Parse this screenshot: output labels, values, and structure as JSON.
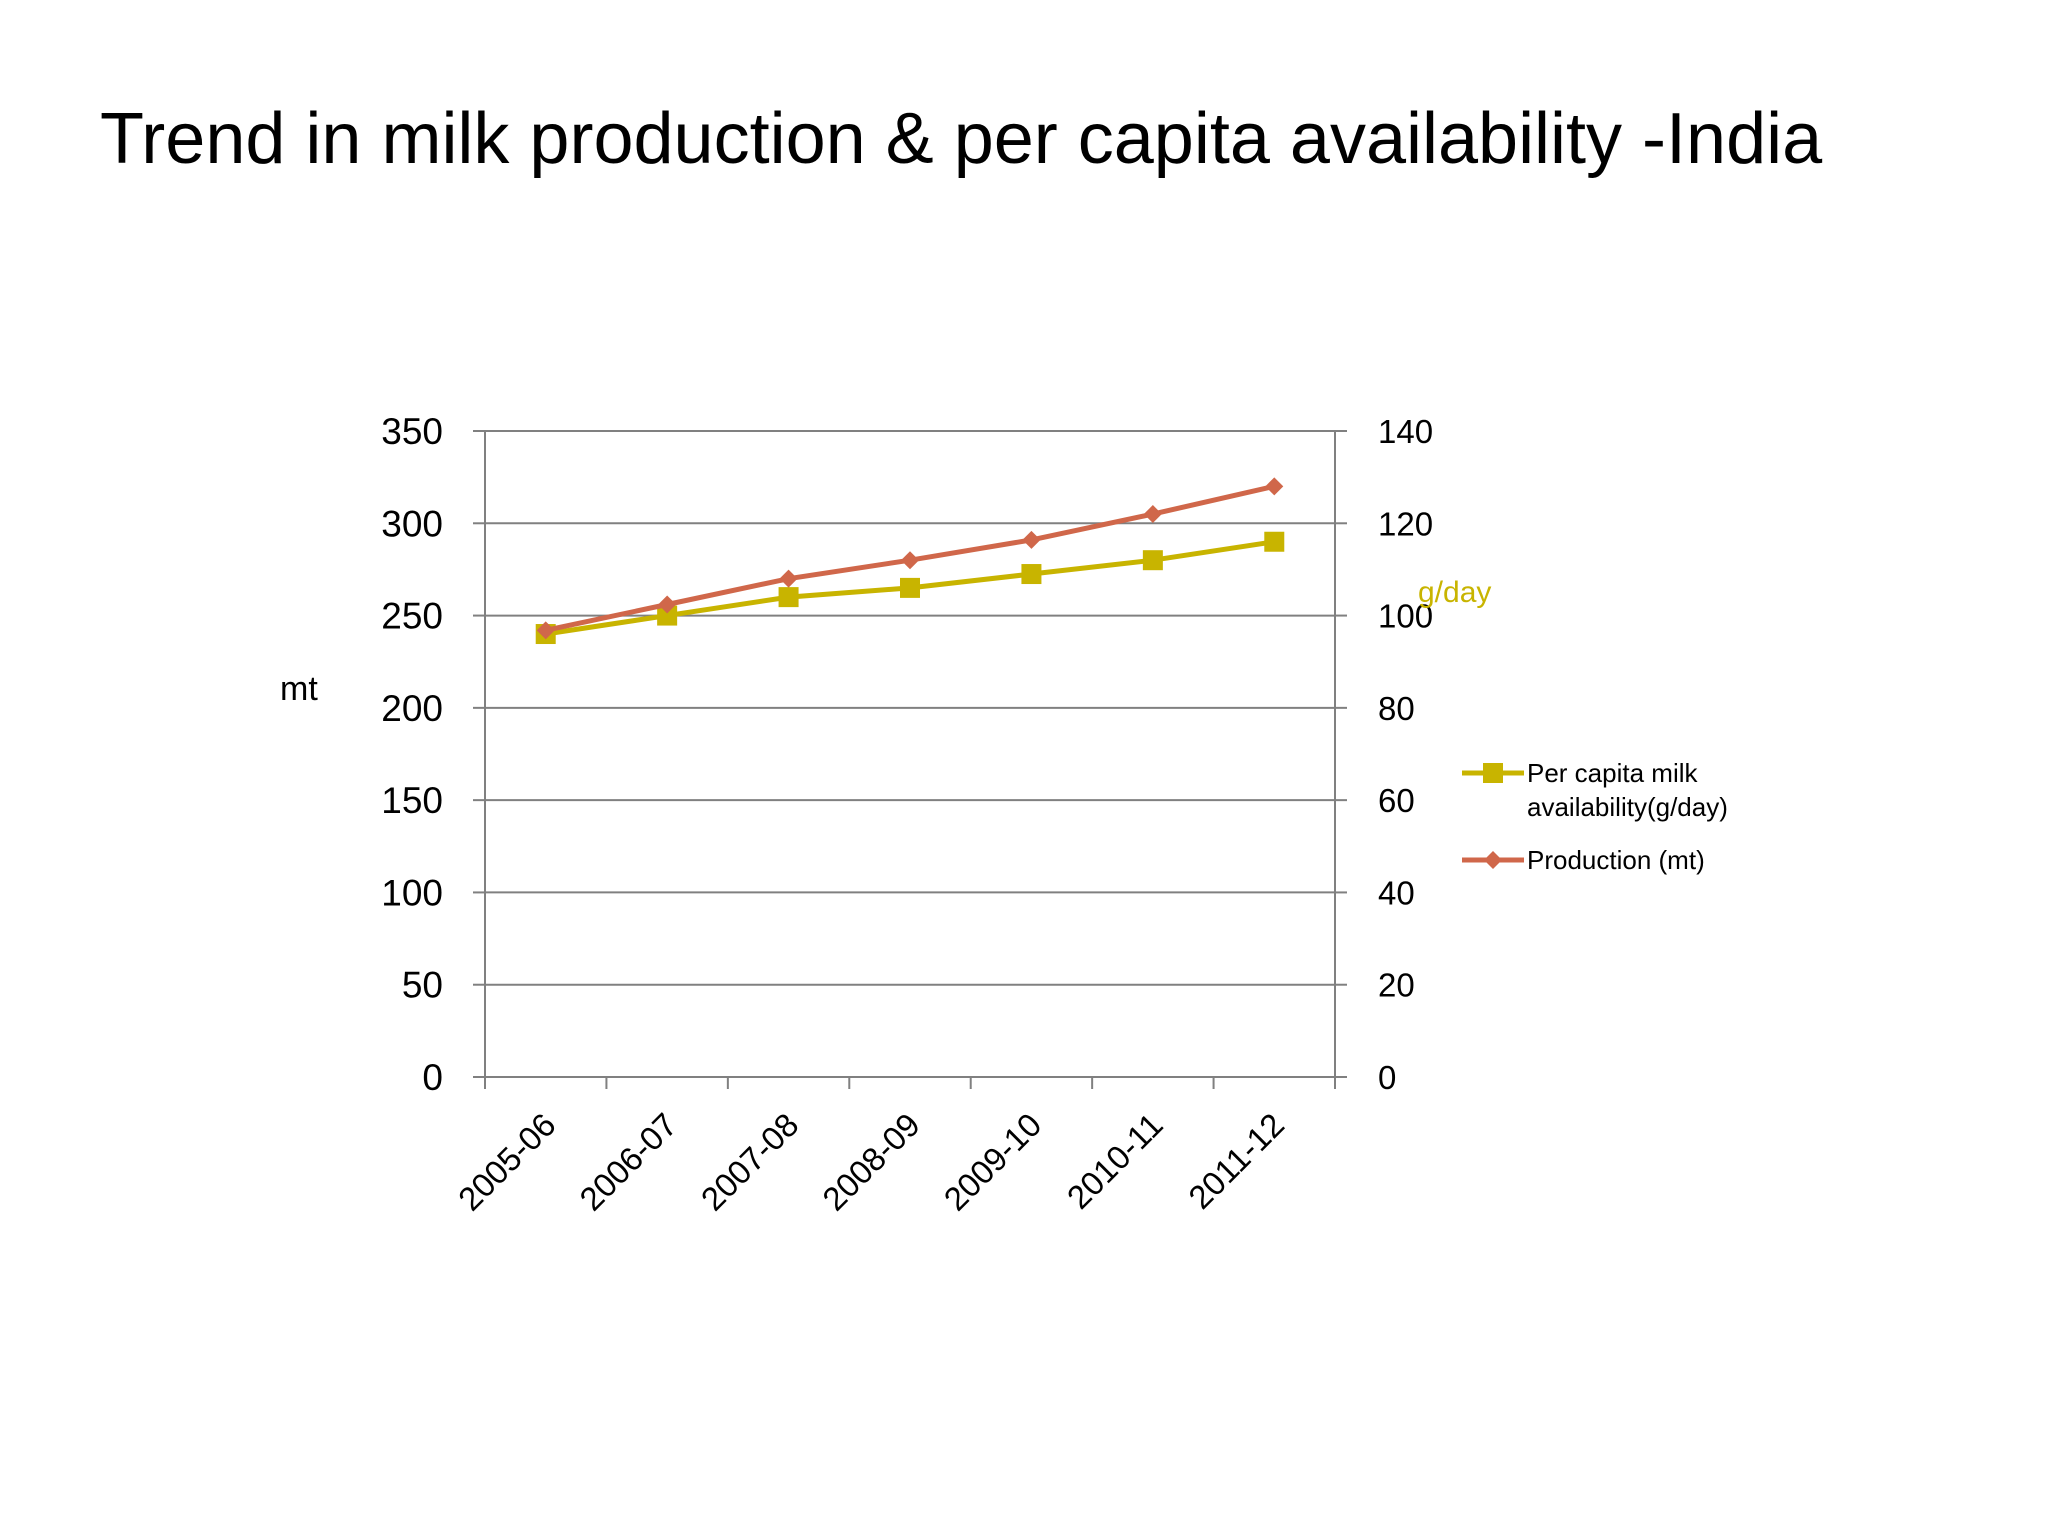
{
  "title": "Trend in milk production & per capita availability -India",
  "colors": {
    "per_capita": "#C8B400",
    "production": "#D0674A",
    "grid": "#808080",
    "text": "#000000"
  },
  "chart_data": {
    "type": "line",
    "title": "",
    "categories": [
      "2005-06",
      "2006-07",
      "2007-08",
      "2008-09",
      "2009-10",
      "2010-11",
      "2011-12"
    ],
    "y_left": {
      "label": "mt",
      "ylim": [
        0,
        350
      ],
      "ticks": [
        "0",
        "50",
        "100",
        "150",
        "200",
        "250",
        "300",
        "350"
      ]
    },
    "y_right": {
      "label": "g/day",
      "ylim": [
        0,
        140
      ],
      "ticks": [
        "0",
        "20",
        "40",
        "60",
        "80",
        "100",
        "120",
        "140"
      ]
    },
    "grid": true,
    "legend_position": "right",
    "series": [
      {
        "name": "Per capita milk availability(g/day)",
        "axis": "right",
        "marker": "square",
        "values": [
          96,
          100,
          104,
          106,
          109,
          112,
          116
        ]
      },
      {
        "name": "Production (mt)",
        "axis": "left",
        "marker": "diamond",
        "values": [
          242,
          256,
          270,
          280,
          291,
          305,
          320
        ]
      }
    ]
  }
}
